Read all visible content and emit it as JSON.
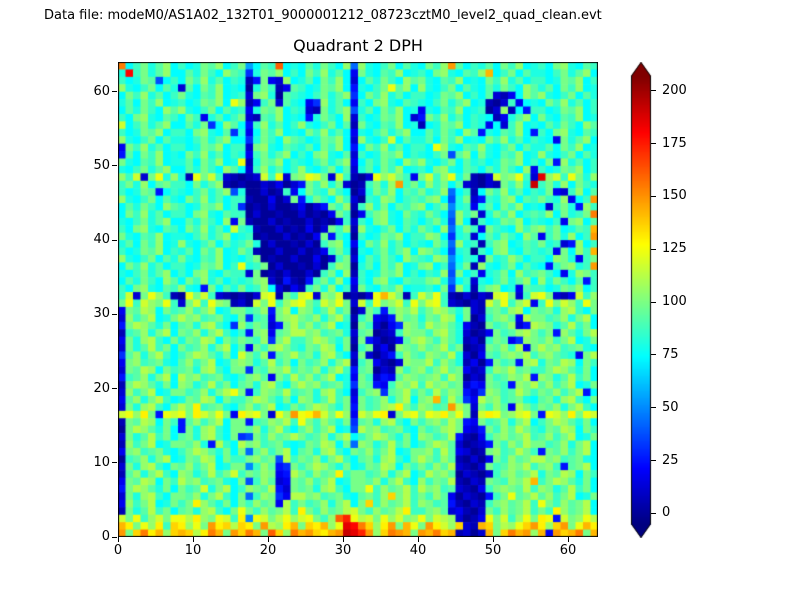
{
  "header": {
    "datafile_label": "Data file: modeM0/AS1A02_132T01_9000001212_08723cztM0_level2_quad_clean.evt"
  },
  "colors": {
    "background": "#ffffff",
    "frame": "#000000",
    "text": "#000000"
  },
  "chart_data": {
    "type": "heatmap",
    "title": "Quadrant 2 DPH",
    "xlabel": "",
    "ylabel": "",
    "x_range": [
      0,
      64
    ],
    "y_range": [
      0,
      64
    ],
    "x_ticks": [
      0,
      10,
      20,
      30,
      40,
      50,
      60
    ],
    "y_ticks": [
      0,
      10,
      20,
      30,
      40,
      50,
      60
    ],
    "grid": false,
    "colormap": "jet",
    "colorbar": {
      "position": "right",
      "ticks": [
        0,
        25,
        50,
        75,
        100,
        125,
        150,
        175,
        200
      ],
      "extend": "both",
      "vmin": -5,
      "vmax": 207
    },
    "value_encoding": {
      "alphabet": "0123456789abcdefghijklmnopqrstuvwxyz",
      "value_per_step": 6.2,
      "note": "each character's alphabet index * 6.2 = DPH counts for that detector pixel; rows listed top (y=63) to bottom (y=0), 64 chars per row (x=0..63)"
    },
    "rows_top_to_bottom": [
      "pcegdfhcecdgfhceg9cfeqcdcfdgech7hdcegcfdcgehofcedfcgehcdecghdcfe",
      "dtegdfhccfdgechfe5dgfhcecgehdfc3gdcfehcdecghdcfehncegcfddcegdfhc",
      "ecdgf6cecgehdfced14g32hcdfcgehc2cfdgechfgdcfehcdcgehdfceecdgfhce",
      "hdcegcfd2fcgehcdc0dge13fecdgfhc4dcegkfhchdcegcfdcfdgechfdfcgehcd",
      "cgehdfcegdcfehcde2ghd0fedcegdfh5cgehdfceecdgfhcecf213chfhdcegcfd",
      "dfcgehcdecdgfhckh13eg2fdc35hdfc3ecghdcfedcegdfhcd102e3cdcgehdfce",
      "cfdgechfhdcegcfde3dgfhced21gdfh6dfcgehcd3dcfehcde02h1c4eecdgfhce",
      "ecghdcfecge3dfceg21fehcdc4dgech2ecdgfhc24gehdfcedc13dfhcgdcfehcd",
      "jcegdfhccfdg5chfc4ehdfcehdcegcf1gdcfehcd1cdgfhced3c2ehcdcfdgechf",
      "ecdgfhceecghdcf5d3cgehcdcgehdfc3dcegdfhccfdgechf4dcfehc4ecghdcfe",
      "hdcegcfddcegdfhcc5dgechfecdgfhc2hdcejcfddfcgehcdcgehdfcedc3gdfhc",
      "3gehdfceecdgfhcee2ghdcfedfcgehc4cgehdfceeckhdcfehdcegcfddfcgehcd",
      "4fcgehcdcgehdfced3egdfhcecghdcf2ecdgfhcedceg6fhcgdcfehcdhdcegcfd",
      "gdcfehcddfcgehcdk1dgfhcedcegdfh3cfdgechfhdcegcfdecdgfhcecg4hdfce",
      "dcegdfhccfdgechfc2ehdfcehdcegcf2dfcgehcdecghdcfecfdgech3ecdgfhce",
      "hej2gkdhd1kgje21012jek2ghkjg2je102khjge3gjehkdg102jghke2uhjekgdh",
      "egdhcfgeecgdfh10100213024gehdg201egdhoegdhegcf21021gehdvegdhcged",
      "ecdgf4cedcegdfh6d00201e3cgedhec02dgehcfegdeh7ce1cgehdfcedg32ehcf",
      "hdcegcfdcgehdfcee100302g4dgeche20edhgcefeghc6dg24edghcfegedh3ceo",
      "cfdgechfecdgfhce501020013024geh1ehdgcfeghceg8de3dfcgehcdc2egd4he",
      "cgehdfceecghdcfee020010020103ge03eghdcgedgec7heg2dgehcefehcgdegp",
      "dcegdfhccfdgech3g1002010020103e2ecghdcfecegd6hc1ecdgfhcedce3ghcf",
      "ecghdcfecgehdfcjed1002010302geh1hdcegcfdgech7dge3gedcheghegcdfen",
      "gdcfehcddcegdfhcde010020103g4ec0ecdgfhceehgc5de2cfdgechf3egdhceo",
      "dfcgehcdhdcegcfdegd02001020eghc3cgehdfcedcge7hde1eghcdfegde24hce",
      "ecdgfhcedfcgehcdge1002002013egd1dcegdfhchgec6de0ecghdcfede3gchen",
      "hdcegcfdgdcfehcdceg0100200302eg2cfdgechfedhg8ced2gdehfceechgd3eg",
      "cgehdfceecdgfhcekdeg02001020ehg0dfcgehcdghce7dg1hdcegcfdc4eghdeo",
      "dcegdfhcecghdcfee2g01020020egch1ecdgfhcecedh6gce3degchefgec3dhge",
      "cfdgechfcgehdfcedegh204104egdhc3ecghdcfeeghd7ce2dcegdfhchdgecf4e",
      "ecghdcfehdc4gcfdgdehc2031egdhce2gdcfehcddecg5hd1eghcd3feecdgfhce",
      "ej2gkhe10kgje210102jk1gejk2hgj0102knjg1ejgke102021jkg2ejkg213jeh",
      "gkejhgke2gjekhg120jgkehjkgejhkg2jekghjekgjke21021jgkehj3ekgjhekg",
      "3gfihcgefhegicdggefh4gichgdfieg02ge4fhgiegihfdg21fgehicgfgdhiecg",
      "2hegicdgighefgdcg5ef3ghigfhdgie1eg324hfgdgfihcg02eghf3iggefhdgic",
      "4gihfdgcfgdhiec5hegf24gifhegicd0ge2035hgeighfd310gefh24ihgdfiegc",
      "1efhdgicgfhdgiece4gh3fgiighefgd2fg012ehggehifd2013gefhigeg4hfdgi",
      "3gdhiecgdgfihcgegfeh5gieegihfdg1g42013fhigehfd120egf35hgfhegicdg",
      "2gdfiegcgefhdgicf3gehigedgfihcg0eg130hgfhfgieg012gfhei3gighefgdc",
      "5fhdgiecegihfdgcjgeh4fgifgdhiec2g2024ehfehgfid203feghgieghfed3gi",
      "3ghefgdcfhegicdghgdfiegcgefhdgi1eg3102hggiehfd1304gef4hidgfihcge",
      "2gfihcgefgdhiecgg5fehgiegfhdgie4fg021heghegifg312ehgifgeegihfdgc",
      "4efhdgicighefgdceghf3geifhegicd3ge243fhgfgheig021gefhgi4hgdfiegc",
      "1gihfdgchgdfiegcfgdhiecgighefgd5gf43ehgieighfg243gfe4hgifhegicdg",
      "2hegicdggefhdgikg4ehgfiefgdhiec2egh5fgiegeifhg425hgefigegfhegi4c",
      "3fhdgiecdgfihcgeegihfdgchgdfieg3gefhdgicghneif53ighefgdcfgdhiecg",
      "2gdhiecgiglefgdcfhegicdgegihfdg4gefhilgehgefoig2gehf3igegfhdgiec",
      "jkhlg4kjkgljhkg3ljkg2khoklnjgkh3jhkl2gjkgkjlhkg1jlkghjkg4kjhlgkj",
      "1gfihcge4fhegicgg4efhgiekgehfdg5fgdhiecgeghfig43gefhdgicegihfdgc",
      "0gihfdgc4gdhiecggfhdgiecfhegicd6ighefgdcgefhig324gehfigedgfihcge",
      "2gdfiegcfgdhiecg56gehfgigefhdgicegihfdgchgefi4103eghfgiefhegicdg",
      "1hegicdggfhd4iecighefgdcdgfihcg7hgdfiegcegihf20124gehfiggefhdgic",
      "3ghefgdcegihfdgcg7fhegicfgdhiecgfhegicdggheif3201ghefige4gfhegic",
      "0efhdgicdgfihcgeeghfg6iegfhdgiecfgdhiecgigehf10203gehfgiighefgdc",
      "2gdhiecgfhegicdgg8ehf45gegihfdgcdgfihcgegehfi2102gefhgieghe4fgic",
      "1fhdgiechgdfiegjegfhg34igehfgleggefhdgiceighf02102eghfgidgfihcge",
      "3gfihcgeighefgdcg6ehf23gfhegicdggfhdgiechegfi1021gfehginegihfdgc",
      "4gihfdgcgefjdgicehgfi42gfgdhiecggkehfgieighef2103eghgfiehgdfiegc",
      "2gdhiecggfhdgiecg7ehg53iighefgdcfgehmgiegehf302104egkfgifhegicdg",
      "3hegicdgeglhfdgcgehfg3iegefhdgicgmehfgiehgef41021eghfgiekgehfgic",
      "1gdfiegcfgdhiecgkgehfgielgehfgijgehfgileeghf23102gehfgiegelhfgic",
      "jgkehjgkkilhgkjel8kjgikhjkgehqskijgkhjghkgjih2013kgjehkglk4jghki",
      "nlgkhlemlhkgolmimlgoihlngmlnhkutpmhlognkgoljhm21nmgihkmolhmogknl",
      "ogmplnhmnmilpngompngqmhpnomlnovusohmpongonpmn1202ngmpnohn3omnpgn"
    ]
  }
}
